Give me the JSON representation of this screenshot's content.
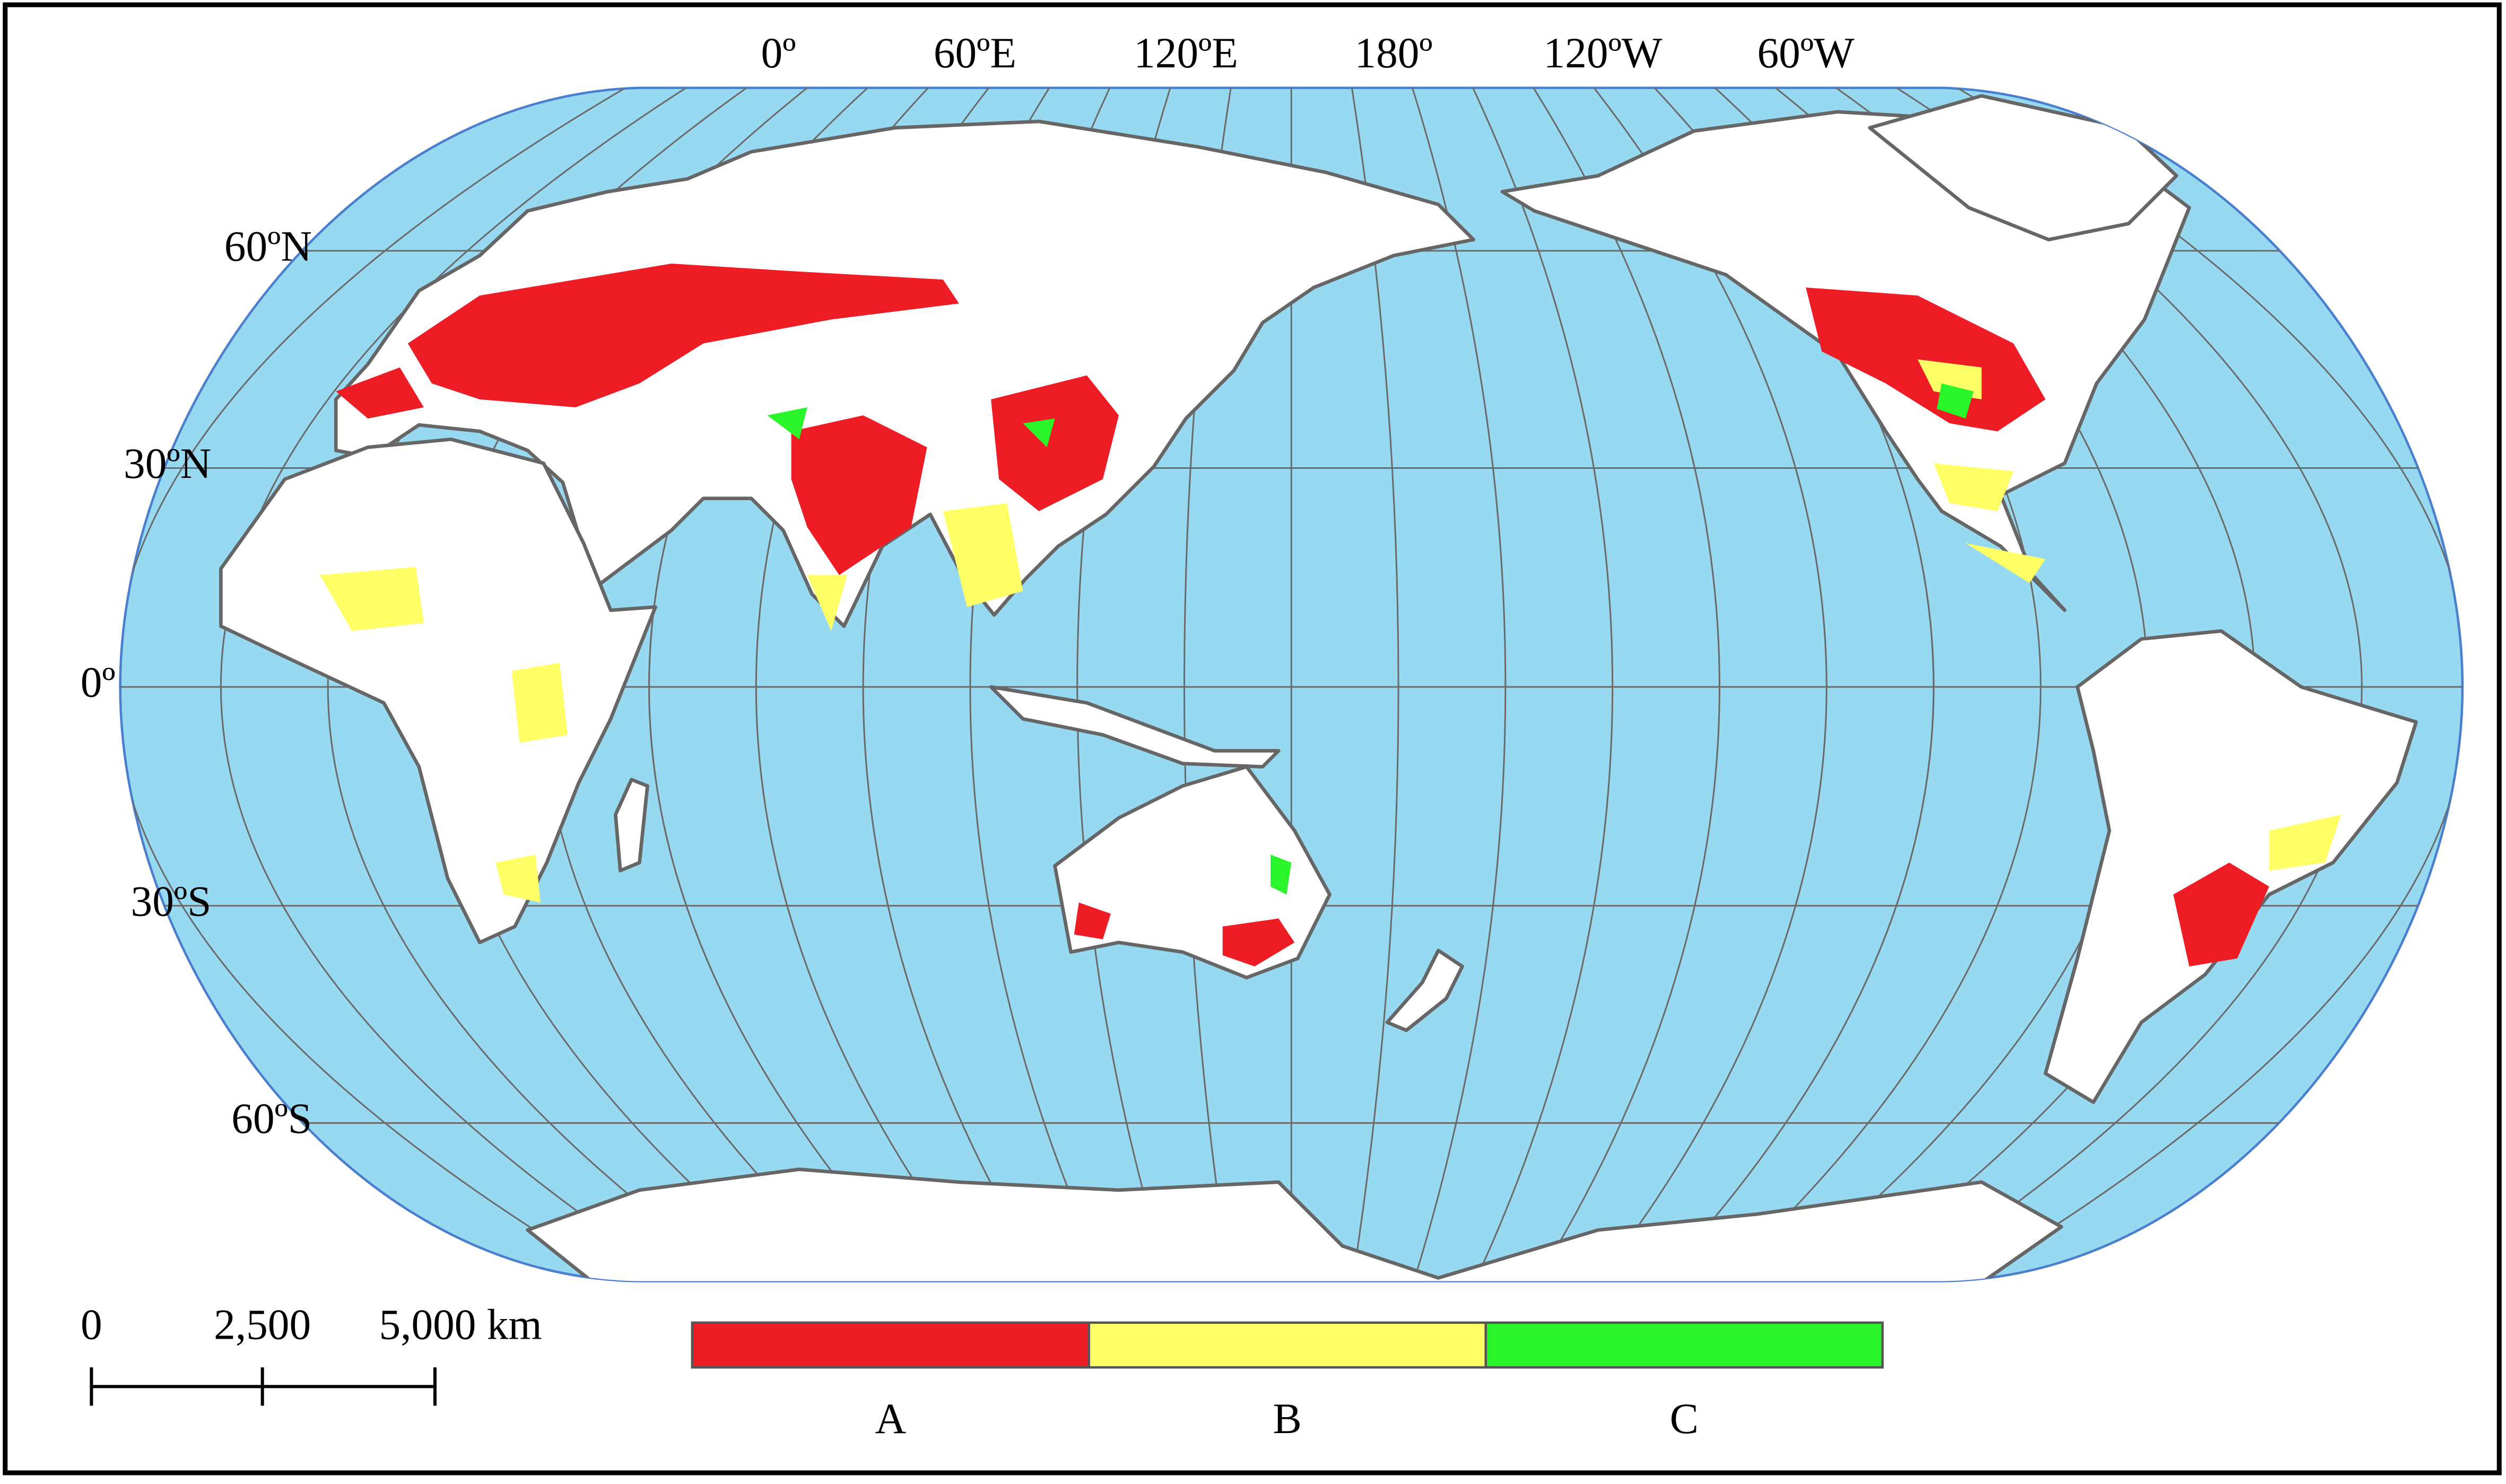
{
  "map": {
    "longitude_labels": [
      "0º",
      "60ºE",
      "120ºE",
      "180º",
      "120ºW",
      "60ºW"
    ],
    "latitude_labels": [
      "60ºN",
      "30ºN",
      "0º",
      "30ºS",
      "60ºS"
    ],
    "scale_bar": {
      "labels": [
        "0",
        "2,500",
        "5,000 km"
      ]
    },
    "legend": {
      "items": [
        {
          "label": "A",
          "color": "#ee1c24"
        },
        {
          "label": "B",
          "color": "#ffff66"
        },
        {
          "label": "C",
          "color": "#2af52a"
        }
      ]
    }
  }
}
